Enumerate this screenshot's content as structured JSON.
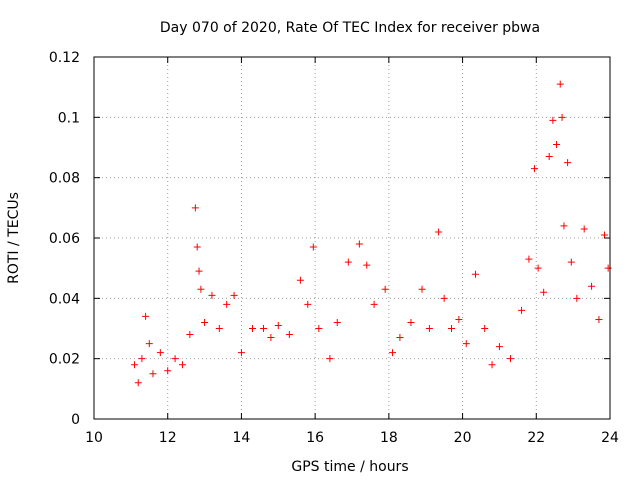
{
  "chart_data": {
    "type": "scatter",
    "title": "Day 070 of 2020, Rate Of TEC Index for receiver pbwa",
    "xlabel": "GPS time / hours",
    "ylabel": "ROTI / TECUs",
    "xlim": [
      10,
      24
    ],
    "ylim": [
      0,
      0.12
    ],
    "x_ticks": [
      "10",
      "12",
      "14",
      "16",
      "18",
      "20",
      "22",
      "24"
    ],
    "y_ticks": [
      "0",
      "0.02",
      "0.04",
      "0.06",
      "0.08",
      "0.1",
      "0.12"
    ],
    "grid": true,
    "marker": "+",
    "color": "#ff0000",
    "series": [
      {
        "points": [
          [
            11.1,
            0.018
          ],
          [
            11.2,
            0.012
          ],
          [
            11.3,
            0.02
          ],
          [
            11.4,
            0.034
          ],
          [
            11.5,
            0.025
          ],
          [
            11.6,
            0.015
          ],
          [
            11.8,
            0.022
          ],
          [
            12.0,
            0.016
          ],
          [
            12.2,
            0.02
          ],
          [
            12.4,
            0.018
          ],
          [
            12.6,
            0.028
          ],
          [
            12.75,
            0.07
          ],
          [
            12.8,
            0.057
          ],
          [
            12.85,
            0.049
          ],
          [
            12.9,
            0.043
          ],
          [
            13.0,
            0.032
          ],
          [
            13.2,
            0.041
          ],
          [
            13.4,
            0.03
          ],
          [
            13.6,
            0.038
          ],
          [
            13.8,
            0.041
          ],
          [
            14.0,
            0.022
          ],
          [
            14.3,
            0.03
          ],
          [
            14.6,
            0.03
          ],
          [
            14.8,
            0.027
          ],
          [
            15.0,
            0.031
          ],
          [
            15.3,
            0.028
          ],
          [
            15.6,
            0.046
          ],
          [
            15.8,
            0.038
          ],
          [
            15.95,
            0.057
          ],
          [
            16.1,
            0.03
          ],
          [
            16.4,
            0.02
          ],
          [
            16.6,
            0.032
          ],
          [
            16.9,
            0.052
          ],
          [
            17.2,
            0.058
          ],
          [
            17.4,
            0.051
          ],
          [
            17.6,
            0.038
          ],
          [
            17.9,
            0.043
          ],
          [
            18.1,
            0.022
          ],
          [
            18.3,
            0.027
          ],
          [
            18.6,
            0.032
          ],
          [
            18.9,
            0.043
          ],
          [
            19.1,
            0.03
          ],
          [
            19.35,
            0.062
          ],
          [
            19.5,
            0.04
          ],
          [
            19.7,
            0.03
          ],
          [
            19.9,
            0.033
          ],
          [
            20.1,
            0.025
          ],
          [
            20.35,
            0.048
          ],
          [
            20.6,
            0.03
          ],
          [
            20.8,
            0.018
          ],
          [
            21.0,
            0.024
          ],
          [
            21.3,
            0.02
          ],
          [
            21.6,
            0.036
          ],
          [
            21.8,
            0.053
          ],
          [
            21.95,
            0.083
          ],
          [
            22.05,
            0.05
          ],
          [
            22.2,
            0.042
          ],
          [
            22.35,
            0.087
          ],
          [
            22.45,
            0.099
          ],
          [
            22.55,
            0.091
          ],
          [
            22.65,
            0.111
          ],
          [
            22.7,
            0.1
          ],
          [
            22.75,
            0.064
          ],
          [
            22.85,
            0.085
          ],
          [
            22.95,
            0.052
          ],
          [
            23.1,
            0.04
          ],
          [
            23.3,
            0.063
          ],
          [
            23.5,
            0.044
          ],
          [
            23.7,
            0.033
          ],
          [
            23.85,
            0.061
          ],
          [
            23.95,
            0.05
          ]
        ]
      }
    ]
  }
}
